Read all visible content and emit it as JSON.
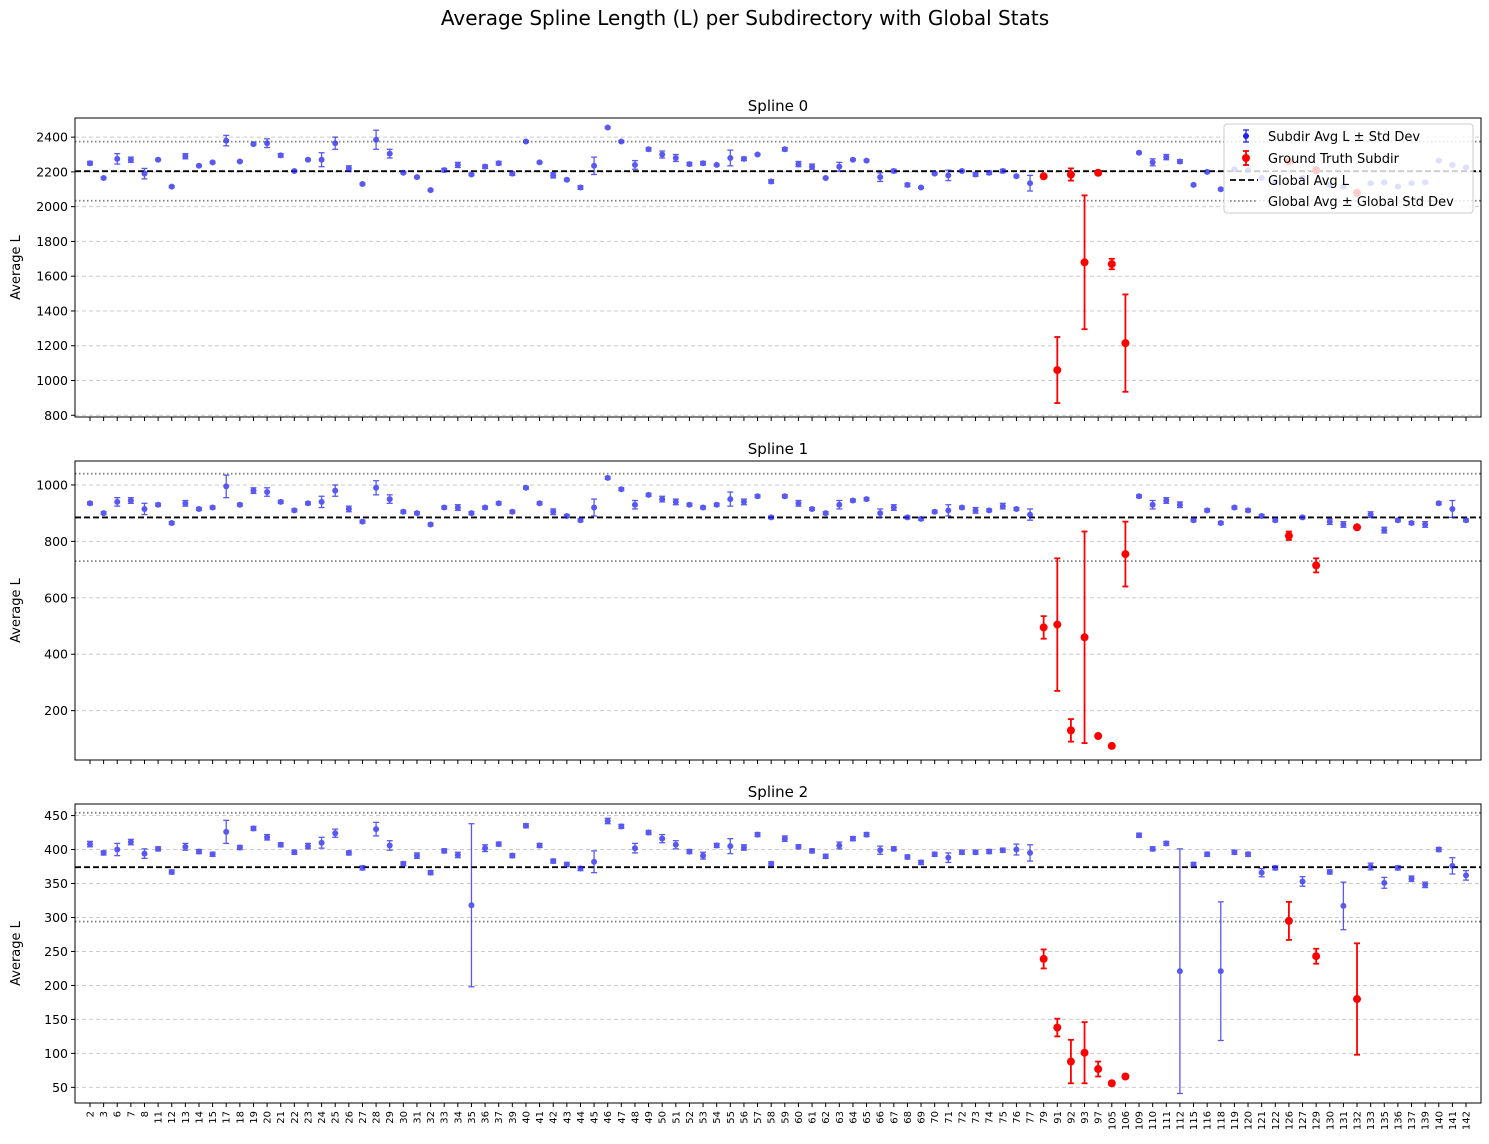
{
  "figure": {
    "title": "Average Spline Length (L) per Subdirectory with Global Stats"
  },
  "legend": {
    "subdir": "Subdir Avg L ± Std Dev",
    "gt": "Ground Truth Subdir",
    "global_avg": "Global Avg L",
    "global_std": "Global Avg ± Global Std Dev"
  },
  "colors": {
    "subdir": "#2222ee",
    "gt": "#ff0000",
    "global_avg": "#000000",
    "global_std": "#808080",
    "grid": "#cccccc"
  },
  "chart_data": [
    {
      "type": "scatter",
      "title": "Spline 0",
      "ylabel": "Average L",
      "ylim": [
        790,
        2510
      ],
      "yticks": [
        800,
        1000,
        1200,
        1400,
        1600,
        1800,
        2000,
        2200,
        2400
      ],
      "global_avg": 2204,
      "global_std": 170,
      "categories": [
        "2",
        "3",
        "6",
        "7",
        "8",
        "11",
        "12",
        "13",
        "14",
        "15",
        "17",
        "18",
        "19",
        "20",
        "21",
        "22",
        "23",
        "24",
        "25",
        "26",
        "27",
        "28",
        "29",
        "30",
        "31",
        "32",
        "33",
        "34",
        "35",
        "36",
        "37",
        "39",
        "40",
        "41",
        "42",
        "43",
        "44",
        "45",
        "46",
        "47",
        "48",
        "49",
        "50",
        "51",
        "52",
        "53",
        "54",
        "55",
        "56",
        "57",
        "58",
        "59",
        "60",
        "61",
        "62",
        "63",
        "64",
        "65",
        "66",
        "67",
        "68",
        "69",
        "70",
        "71",
        "72",
        "73",
        "74",
        "75",
        "76",
        "77",
        "79",
        "91",
        "92",
        "93",
        "97",
        "105",
        "106",
        "109",
        "110",
        "111",
        "112",
        "115",
        "116",
        "118",
        "119",
        "120",
        "121",
        "122",
        "126",
        "127",
        "129",
        "130",
        "131",
        "132",
        "133",
        "135",
        "136",
        "137",
        "139",
        "140",
        "141",
        "142"
      ],
      "gt_categories": [
        "79",
        "91",
        "92",
        "93",
        "97",
        "105",
        "106",
        "126",
        "129",
        "132"
      ],
      "values": [
        2250,
        2165,
        2275,
        2270,
        2190,
        2270,
        2115,
        2290,
        2235,
        2255,
        2380,
        2260,
        2360,
        2365,
        2295,
        2205,
        2270,
        2270,
        2365,
        2220,
        2130,
        2385,
        2305,
        2195,
        2170,
        2095,
        2210,
        2240,
        2185,
        2230,
        2250,
        2190,
        2375,
        2255,
        2180,
        2155,
        2110,
        2235,
        2455,
        2375,
        2240,
        2330,
        2300,
        2280,
        2245,
        2250,
        2240,
        2280,
        2275,
        2300,
        2145,
        2330,
        2245,
        2230,
        2165,
        2230,
        2270,
        2265,
        2170,
        2205,
        2125,
        2110,
        2190,
        2180,
        2205,
        2185,
        2195,
        2205,
        2175,
        2135,
        2175,
        1060,
        2185,
        1680,
        2195,
        1670,
        1215,
        2310,
        2255,
        2285,
        2260,
        2125,
        2200,
        2100,
        2215,
        2210,
        2165,
        2140,
        2260,
        2165,
        2210,
        2125,
        2115,
        2080,
        2135,
        2140,
        2115,
        2135,
        2140,
        2265,
        2240,
        2225
      ],
      "errors": [
        10,
        5,
        30,
        15,
        30,
        5,
        5,
        15,
        5,
        5,
        30,
        5,
        5,
        25,
        10,
        5,
        5,
        40,
        35,
        15,
        5,
        55,
        25,
        5,
        5,
        5,
        10,
        15,
        5,
        10,
        10,
        10,
        5,
        5,
        15,
        5,
        10,
        50,
        5,
        5,
        25,
        10,
        20,
        20,
        10,
        10,
        5,
        45,
        10,
        5,
        10,
        10,
        15,
        15,
        5,
        25,
        5,
        5,
        25,
        10,
        10,
        5,
        5,
        30,
        5,
        10,
        10,
        10,
        5,
        45,
        5,
        190,
        35,
        385,
        5,
        30,
        280,
        5,
        20,
        15,
        10,
        5,
        5,
        5,
        5,
        5,
        5,
        5,
        10,
        5,
        5,
        5,
        5,
        5,
        5,
        5,
        5,
        5,
        5,
        5,
        5,
        5
      ]
    },
    {
      "type": "scatter",
      "title": "Spline 1",
      "ylabel": "Average L",
      "ylim": [
        25,
        1085
      ],
      "yticks": [
        200,
        400,
        600,
        800,
        1000
      ],
      "global_avg": 885,
      "global_std": 155,
      "categories": [
        "2",
        "3",
        "6",
        "7",
        "8",
        "11",
        "12",
        "13",
        "14",
        "15",
        "17",
        "18",
        "19",
        "20",
        "21",
        "22",
        "23",
        "24",
        "25",
        "26",
        "27",
        "28",
        "29",
        "30",
        "31",
        "32",
        "33",
        "34",
        "35",
        "36",
        "37",
        "39",
        "40",
        "41",
        "42",
        "43",
        "44",
        "45",
        "46",
        "47",
        "48",
        "49",
        "50",
        "51",
        "52",
        "53",
        "54",
        "55",
        "56",
        "57",
        "58",
        "59",
        "60",
        "61",
        "62",
        "63",
        "64",
        "65",
        "66",
        "67",
        "68",
        "69",
        "70",
        "71",
        "72",
        "73",
        "74",
        "75",
        "76",
        "77",
        "79",
        "91",
        "92",
        "93",
        "97",
        "105",
        "106",
        "109",
        "110",
        "111",
        "112",
        "115",
        "116",
        "118",
        "119",
        "120",
        "121",
        "122",
        "126",
        "127",
        "129",
        "130",
        "131",
        "132",
        "133",
        "135",
        "136",
        "137",
        "139",
        "140",
        "141",
        "142"
      ],
      "gt_categories": [
        "79",
        "91",
        "92",
        "93",
        "97",
        "105",
        "106",
        "126",
        "129",
        "132"
      ],
      "values": [
        935,
        900,
        940,
        945,
        915,
        930,
        865,
        935,
        915,
        920,
        995,
        930,
        980,
        975,
        940,
        910,
        935,
        940,
        980,
        915,
        870,
        990,
        950,
        905,
        900,
        860,
        920,
        920,
        900,
        920,
        935,
        905,
        990,
        935,
        905,
        890,
        875,
        920,
        1025,
        985,
        930,
        965,
        950,
        940,
        930,
        920,
        930,
        950,
        940,
        960,
        885,
        960,
        935,
        915,
        900,
        930,
        945,
        950,
        900,
        920,
        885,
        880,
        905,
        910,
        920,
        910,
        910,
        925,
        915,
        895,
        495,
        505,
        130,
        460,
        110,
        75,
        755,
        960,
        930,
        945,
        930,
        875,
        910,
        865,
        920,
        910,
        890,
        875,
        820,
        885,
        715,
        870,
        860,
        850,
        895,
        840,
        875,
        865,
        860,
        935,
        915,
        875
      ],
      "errors": [
        5,
        5,
        15,
        10,
        20,
        5,
        5,
        10,
        5,
        5,
        40,
        5,
        10,
        15,
        5,
        5,
        5,
        20,
        20,
        10,
        5,
        25,
        15,
        5,
        5,
        5,
        5,
        10,
        5,
        5,
        5,
        5,
        5,
        5,
        10,
        5,
        5,
        30,
        5,
        5,
        15,
        5,
        10,
        10,
        5,
        5,
        5,
        25,
        10,
        5,
        5,
        5,
        10,
        5,
        5,
        15,
        5,
        5,
        15,
        10,
        5,
        5,
        5,
        20,
        5,
        10,
        5,
        10,
        5,
        20,
        40,
        235,
        40,
        375,
        5,
        5,
        115,
        5,
        15,
        10,
        10,
        5,
        5,
        5,
        5,
        5,
        5,
        5,
        15,
        5,
        25,
        10,
        10,
        5,
        10,
        10,
        5,
        5,
        10,
        5,
        30,
        5
      ]
    },
    {
      "type": "scatter",
      "title": "Spline 2",
      "ylabel": "Average L",
      "ylim": [
        27,
        467
      ],
      "yticks": [
        50,
        100,
        150,
        200,
        250,
        300,
        350,
        400,
        450
      ],
      "global_avg": 374,
      "global_std": 80,
      "categories": [
        "2",
        "3",
        "6",
        "7",
        "8",
        "11",
        "12",
        "13",
        "14",
        "15",
        "17",
        "18",
        "19",
        "20",
        "21",
        "22",
        "23",
        "24",
        "25",
        "26",
        "27",
        "28",
        "29",
        "30",
        "31",
        "32",
        "33",
        "34",
        "35",
        "36",
        "37",
        "39",
        "40",
        "41",
        "42",
        "43",
        "44",
        "45",
        "46",
        "47",
        "48",
        "49",
        "50",
        "51",
        "52",
        "53",
        "54",
        "55",
        "56",
        "57",
        "58",
        "59",
        "60",
        "61",
        "62",
        "63",
        "64",
        "65",
        "66",
        "67",
        "68",
        "69",
        "70",
        "71",
        "72",
        "73",
        "74",
        "75",
        "76",
        "77",
        "79",
        "91",
        "92",
        "93",
        "97",
        "105",
        "106",
        "109",
        "110",
        "111",
        "112",
        "115",
        "116",
        "118",
        "119",
        "120",
        "121",
        "122",
        "126",
        "127",
        "129",
        "130",
        "131",
        "132",
        "133",
        "135",
        "136",
        "137",
        "139",
        "140",
        "141",
        "142"
      ],
      "gt_categories": [
        "79",
        "91",
        "92",
        "93",
        "97",
        "105",
        "106",
        "126",
        "129",
        "132"
      ],
      "values": [
        408,
        395,
        400,
        411,
        394,
        401,
        367,
        404,
        397,
        393,
        426,
        403,
        431,
        418,
        407,
        396,
        405,
        410,
        424,
        395,
        373,
        430,
        406,
        379,
        391,
        366,
        398,
        392,
        318,
        402,
        408,
        391,
        435,
        406,
        383,
        378,
        372,
        382,
        442,
        434,
        402,
        425,
        416,
        407,
        397,
        391,
        406,
        405,
        403,
        422,
        379,
        416,
        404,
        398,
        390,
        406,
        416,
        422,
        399,
        401,
        389,
        381,
        393,
        388,
        396,
        396,
        397,
        399,
        400,
        395,
        239,
        138,
        88,
        101,
        77,
        56,
        66,
        421,
        401,
        409,
        221,
        378,
        393,
        221,
        396,
        393,
        366,
        373,
        295,
        353,
        243,
        367,
        317,
        180,
        375,
        351,
        373,
        357,
        348,
        400,
        376,
        362
      ],
      "errors": [
        4,
        3,
        9,
        4,
        7,
        3,
        3,
        5,
        3,
        3,
        17,
        3,
        3,
        4,
        3,
        3,
        4,
        8,
        6,
        3,
        3,
        10,
        7,
        3,
        4,
        3,
        3,
        4,
        120,
        5,
        3,
        3,
        3,
        3,
        3,
        3,
        3,
        16,
        4,
        3,
        7,
        3,
        6,
        6,
        3,
        5,
        3,
        11,
        4,
        3,
        3,
        4,
        3,
        3,
        3,
        5,
        3,
        3,
        6,
        3,
        3,
        3,
        3,
        7,
        3,
        3,
        3,
        3,
        8,
        12,
        14,
        13,
        32,
        45,
        11,
        3,
        3,
        3,
        3,
        3,
        180,
        3,
        3,
        102,
        3,
        3,
        6,
        3,
        28,
        7,
        11,
        3,
        35,
        82,
        5,
        8,
        3,
        4,
        4,
        3,
        12,
        7
      ]
    }
  ]
}
